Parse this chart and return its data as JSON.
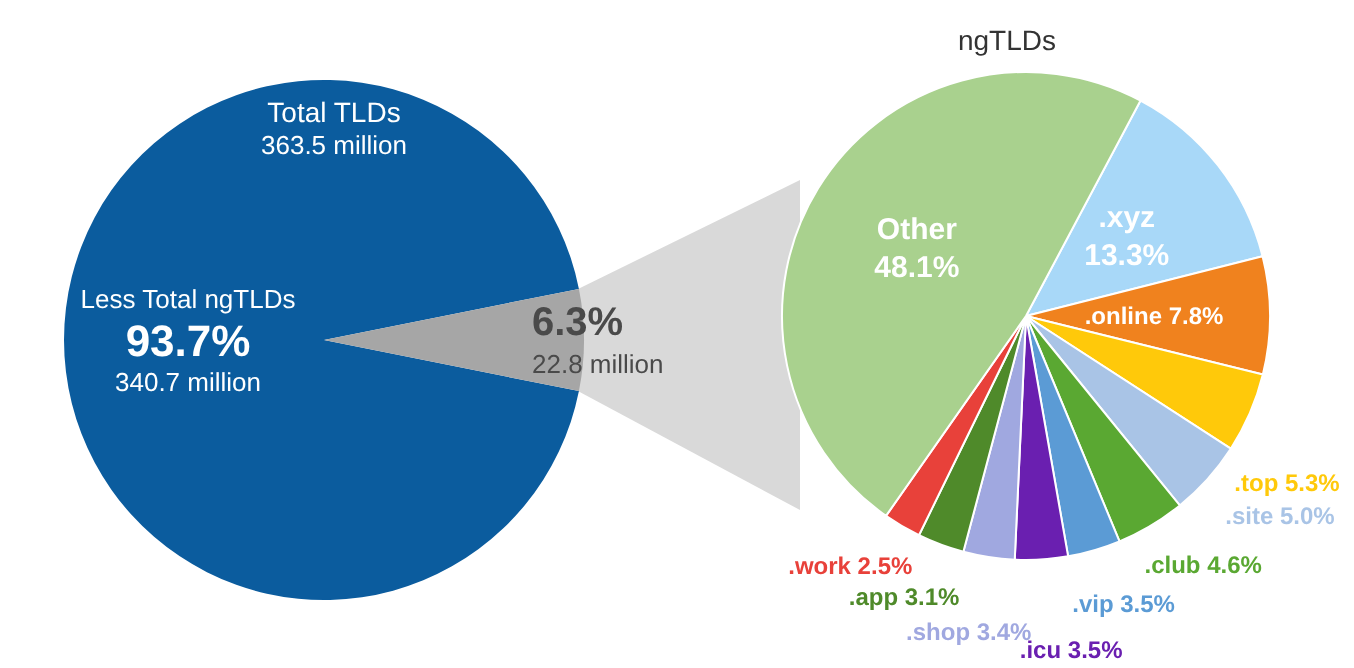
{
  "chart_data": [
    {
      "type": "pie",
      "title": "Total TLDs",
      "subtitle": "363.5 million",
      "categories": [
        "Less Total ngTLDs",
        null
      ],
      "values": [
        93.7,
        6.3
      ],
      "value_labels": [
        "93.7%\n340.7 million",
        "6.3%\n22.8 million"
      ],
      "colors": [
        "#0b5c9e",
        "#a6a6a6"
      ]
    },
    {
      "type": "pie",
      "title": "ngTLDs",
      "categories": [
        ".xyz",
        ".online",
        ".top",
        ".site",
        ".club",
        ".vip",
        ".icu",
        ".shop",
        ".app",
        ".work",
        "Other"
      ],
      "values": [
        13.3,
        7.8,
        5.3,
        5.0,
        4.6,
        3.5,
        3.5,
        3.4,
        3.1,
        2.5,
        48.1
      ],
      "value_labels": [
        "13.3%",
        "7.8%",
        "5.3%",
        "5.0%",
        "4.6%",
        "3.5%",
        "3.5%",
        "3.4%",
        "3.1%",
        "2.5%",
        "48.1%"
      ],
      "colors": [
        "#a8d8f8",
        "#f0821e",
        "#ffc90a",
        "#a9c4e6",
        "#5aa832",
        "#5b9bd5",
        "#6a1fb0",
        "#a0a8e0",
        "#4f8a2a",
        "#e8413a",
        "#a9d18e"
      ]
    }
  ]
}
